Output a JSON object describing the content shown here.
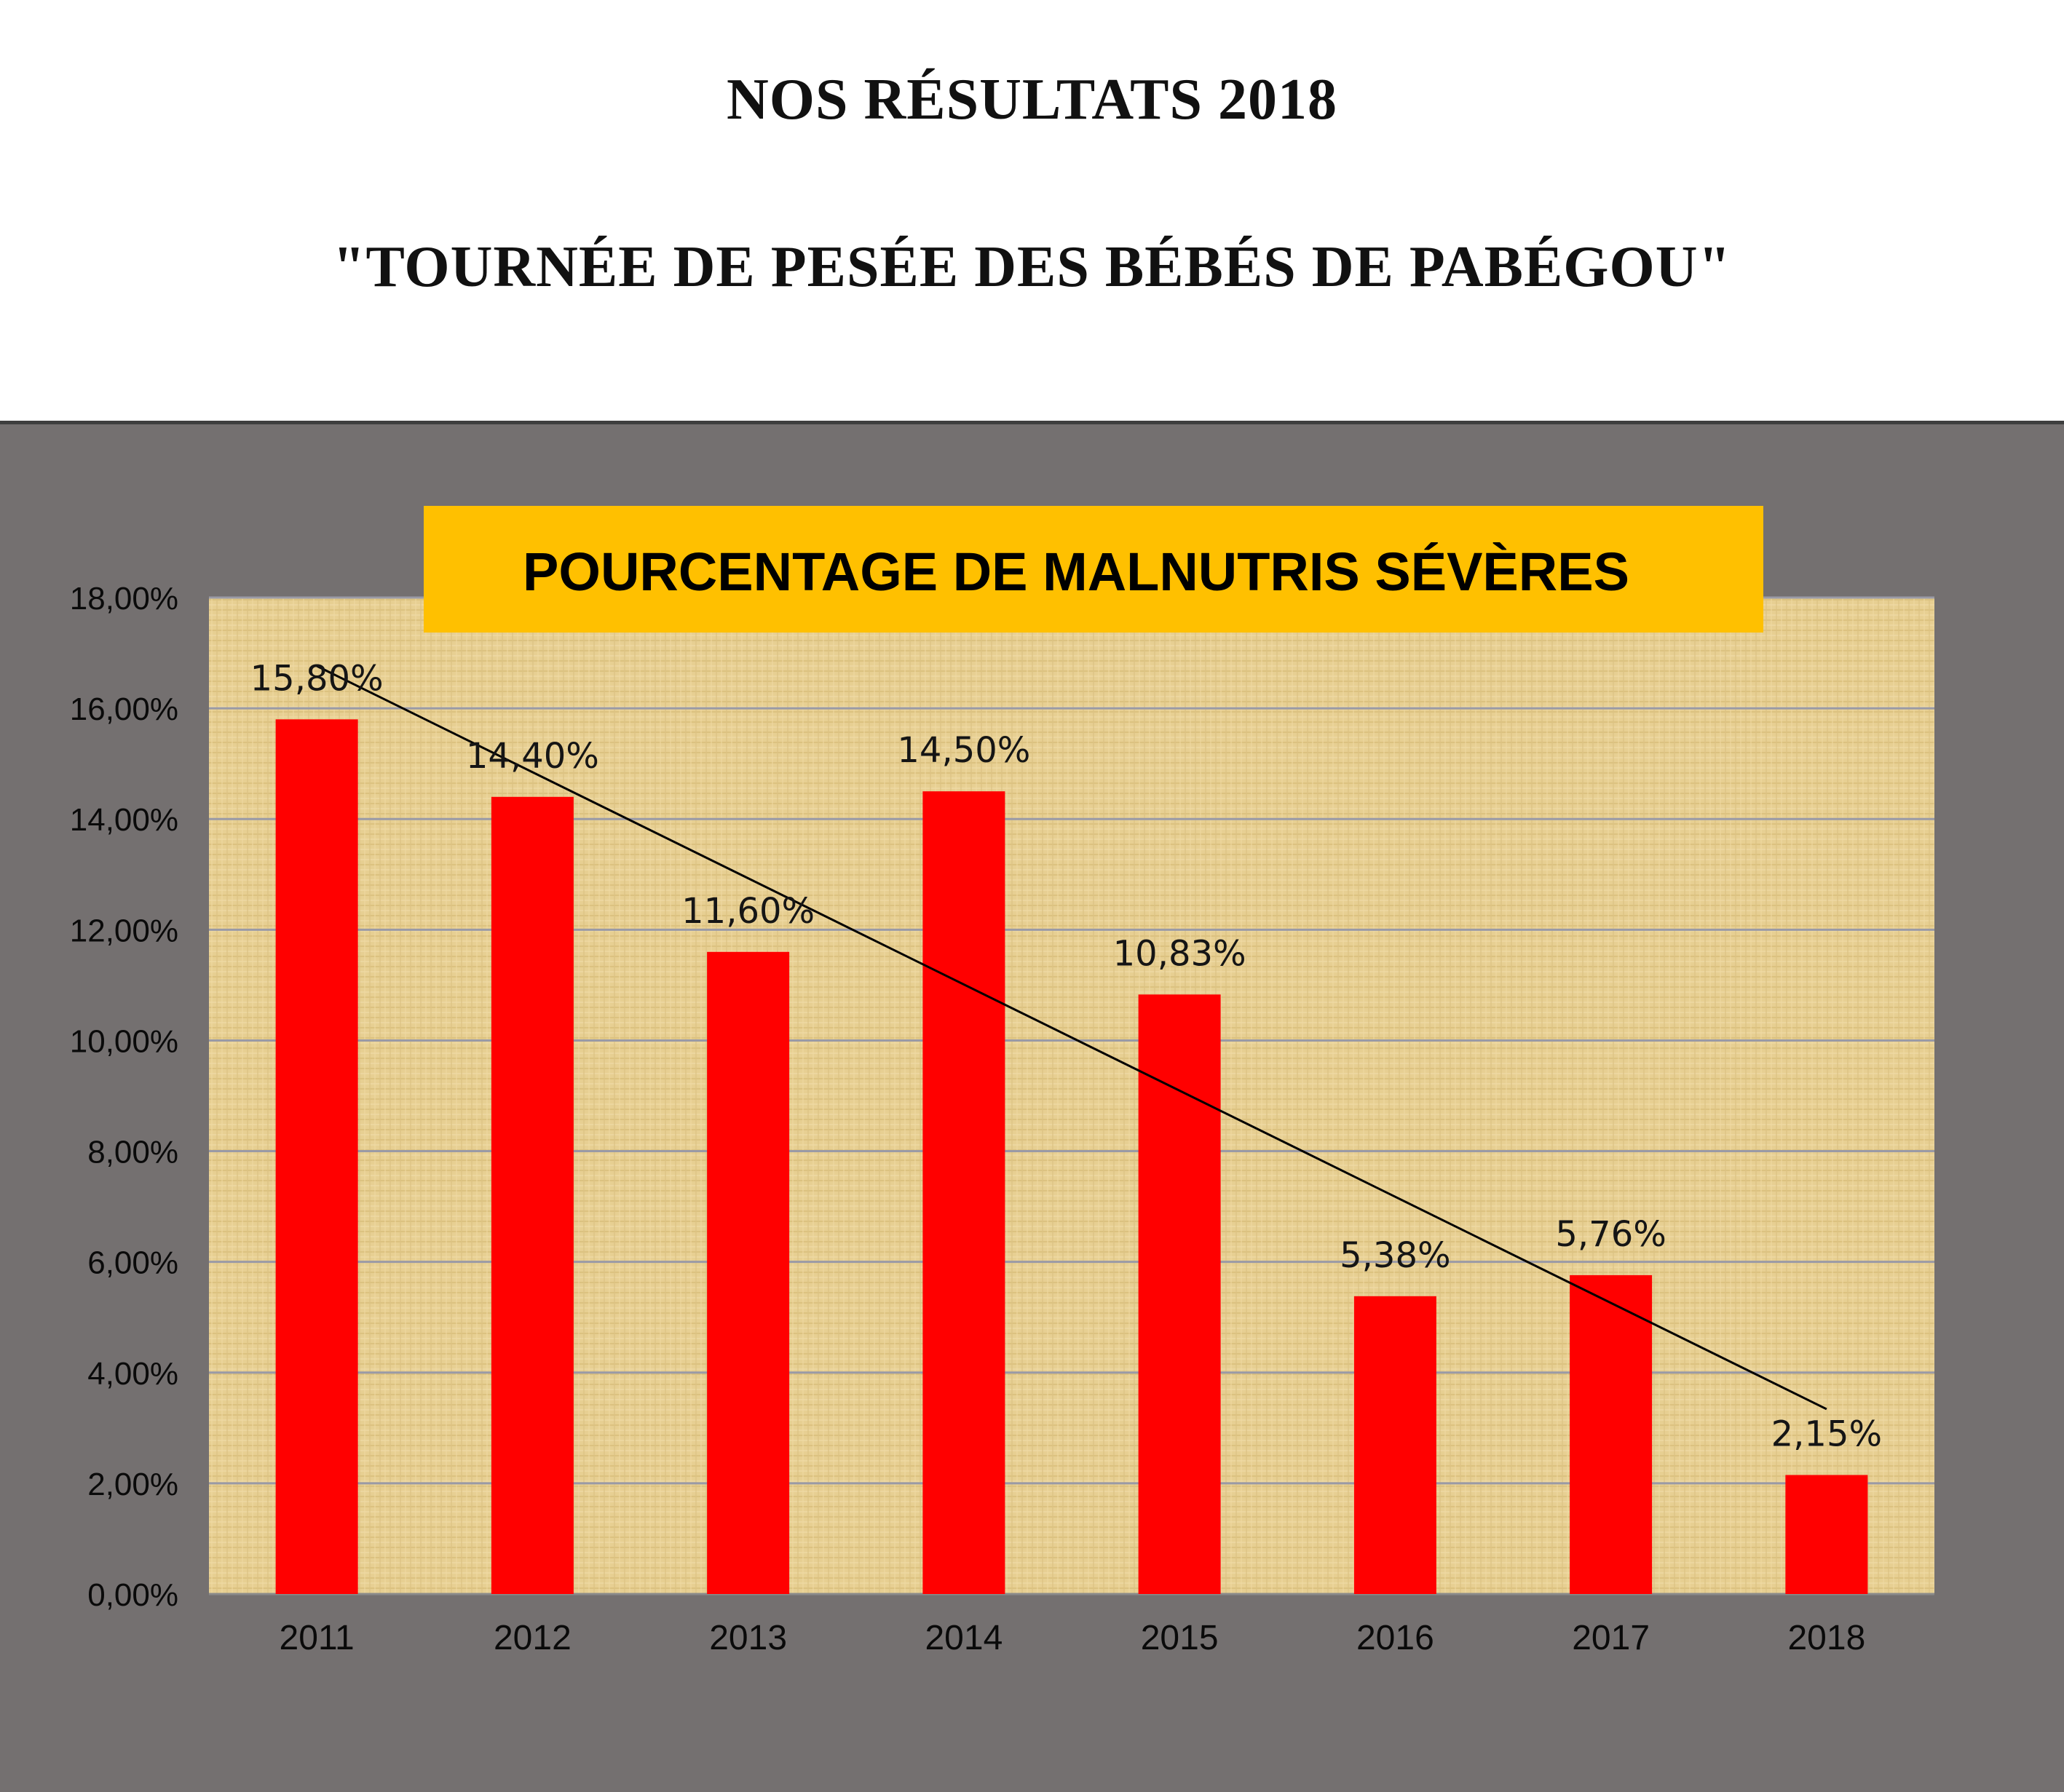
{
  "header": {
    "title": "NOS RÉSULTATS 2018",
    "subtitle": "\"TOURNÉE DE PESÉE DES BÉBÉS DE PABÉGOU\""
  },
  "colors": {
    "panel_background": "#747070",
    "plot_background": "#e7cf92",
    "bar": "#ff0000",
    "title_box": "#ffc000",
    "trendline": "#000000",
    "gridline": "#9a9aa6"
  },
  "chart_data": {
    "type": "bar",
    "title": "POURCENTAGE DE MALNUTRIS SÉVÈRES",
    "categories": [
      "2011",
      "2012",
      "2013",
      "2014",
      "2015",
      "2016",
      "2017",
      "2018"
    ],
    "values": [
      15.8,
      14.4,
      11.6,
      14.5,
      10.83,
      5.38,
      5.76,
      2.15
    ],
    "data_labels": [
      "15,80%",
      "14,40%",
      "11,60%",
      "14,50%",
      "10,83%",
      "5,38%",
      "5,76%",
      "2,15%"
    ],
    "y_ticks": [
      "0,00%",
      "2,00%",
      "4,00%",
      "6,00%",
      "8,00%",
      "10,00%",
      "12,00%",
      "14,00%",
      "16,00%",
      "18,00%"
    ],
    "ylim": [
      0,
      18
    ],
    "xlabel": "",
    "ylabel": "",
    "grid": true,
    "trendline": "linear",
    "legend": "none"
  }
}
